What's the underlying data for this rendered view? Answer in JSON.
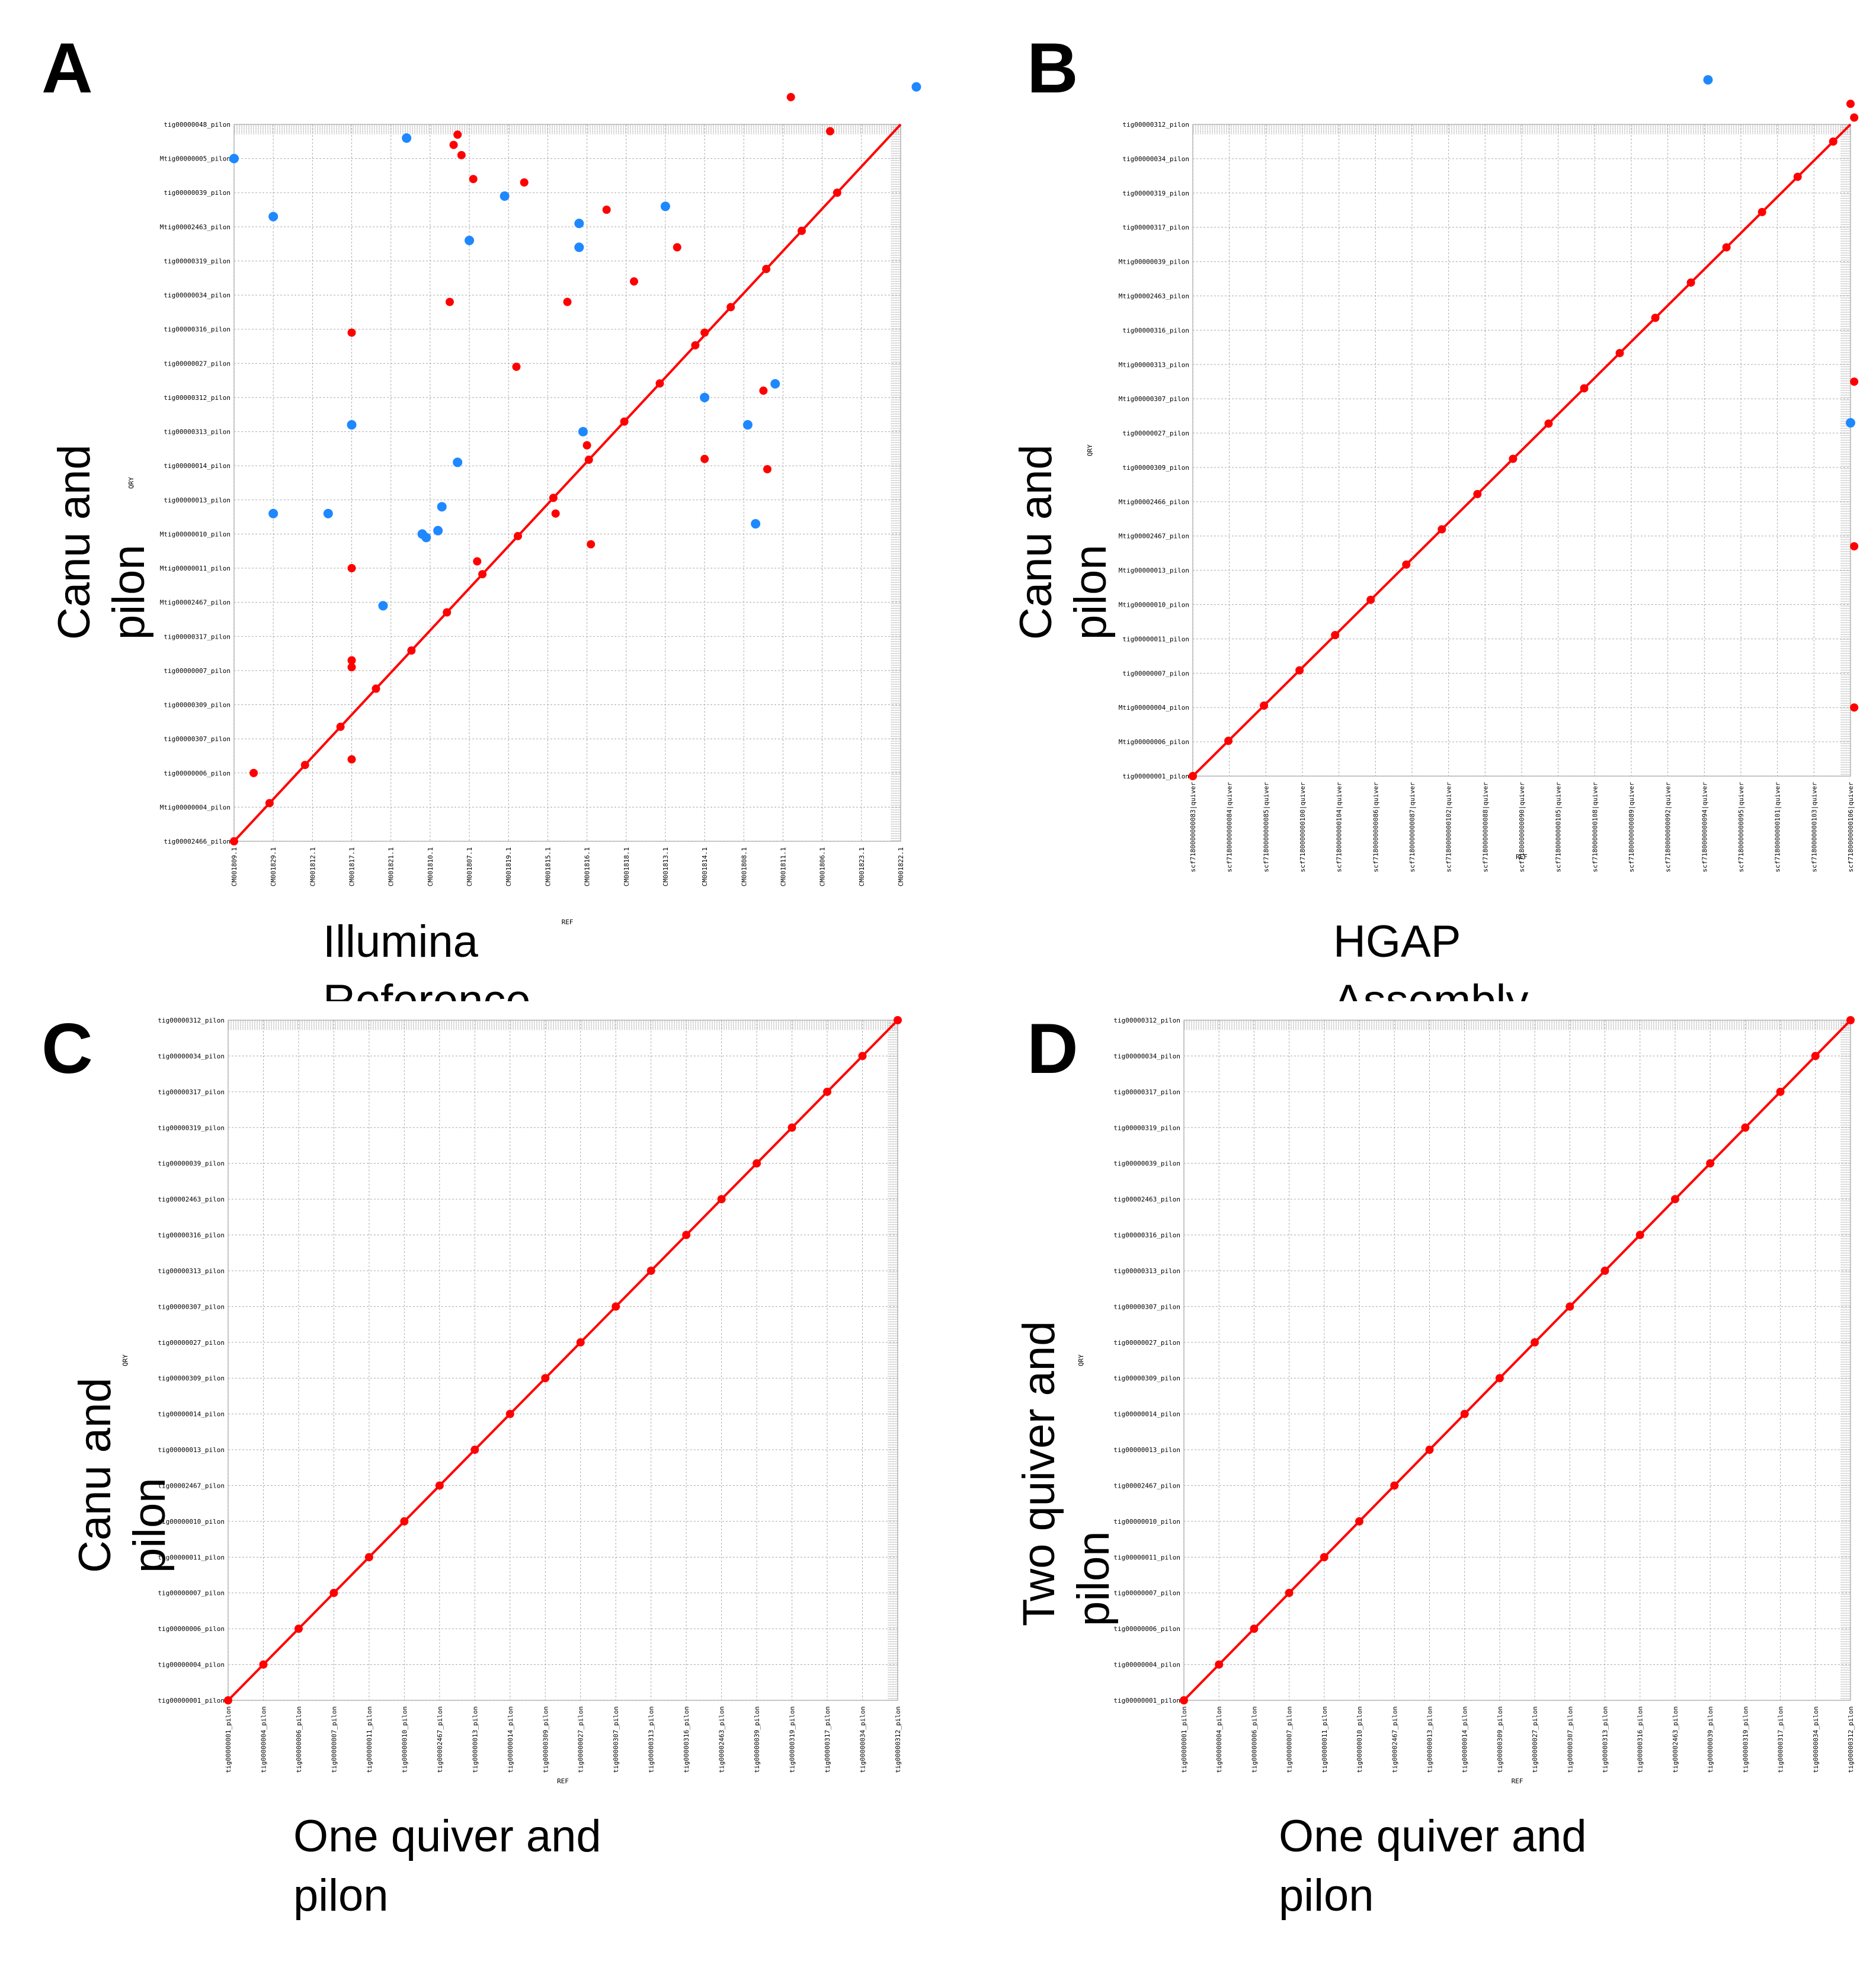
{
  "panels": [
    {
      "letter": "A",
      "x_title": "Illumina\nReference",
      "y_title": "Canu and\npilon",
      "chart_data": {
        "type": "scatter",
        "title": "",
        "xlabel": "REF",
        "ylabel": "QRY",
        "x_ticks": [
          "CM001809.1",
          "CM001829.1",
          "CM001812.1",
          "CM001817.1",
          "CM001821.1",
          "CM001810.1",
          "CM001807.1",
          "CM001819.1",
          "CM001815.1",
          "CM001816.1",
          "CM001818.1",
          "CM001813.1",
          "CM001814.1",
          "CM001808.1",
          "CM001811.1",
          "CM001806.1",
          "CM001823.1",
          "CM001822.1"
        ],
        "y_ticks": [
          "tig00002466_pilon",
          "Mtig00000004_pilon",
          "tig00000006_pilon",
          "tig00000307_pilon",
          "tig00000309_pilon",
          "tig00000007_pilon",
          "tig00000317_pilon",
          "Mtig00002467_pilon",
          "Mtig00000011_pilon",
          "Mtig00000010_pilon",
          "tig00000013_pilon",
          "tig00000014_pilon",
          "tig00000313_pilon",
          "tig00000312_pilon",
          "tig00000027_pilon",
          "tig00000316_pilon",
          "tig00000034_pilon",
          "tig00000319_pilon",
          "Mtig00002463_pilon",
          "tig00000039_pilon",
          "Mtig00000005_pilon",
          "tig00000048_pilon"
        ],
        "series": [
          {
            "name": "",
            "color": "#ff0000",
            "values": [
              [
                0.5,
                2.0
              ],
              [
                3.0,
                5.1
              ],
              [
                7.2,
                13.9
              ],
              [
                5.5,
                15.8
              ],
              [
                3.0,
                14.9
              ],
              [
                3.0,
                8.0
              ],
              [
                3.0,
                2.4
              ],
              [
                3.0,
                5.3
              ],
              [
                6.1,
                19.4
              ],
              [
                7.4,
                19.3
              ],
              [
                9.5,
                18.5
              ],
              [
                11.3,
                17.4
              ],
              [
                14.2,
                21.8
              ],
              [
                15.2,
                20.8
              ],
              [
                9.1,
                8.7
              ],
              [
                8.5,
                15.8
              ],
              [
                9.0,
                11.6
              ],
              [
                10.2,
                16.4
              ],
              [
                12.0,
                14.9
              ],
              [
                13.5,
                13.2
              ],
              [
                12.0,
                11.2
              ],
              [
                13.6,
                10.9
              ],
              [
                8.2,
                9.6
              ],
              [
                6.2,
                8.2
              ],
              [
                5.7,
                20.7
              ],
              [
                5.6,
                20.4
              ],
              [
                5.8,
                20.1
              ]
            ]
          },
          {
            "name": "",
            "color": "#1e88ff",
            "values": [
              [
                0.0,
                20.0
              ],
              [
                1.0,
                18.3
              ],
              [
                4.4,
                20.6
              ],
              [
                6.0,
                17.6
              ],
              [
                6.9,
                18.9
              ],
              [
                8.8,
                17.4
              ],
              [
                8.8,
                18.1
              ],
              [
                11.0,
                18.6
              ],
              [
                5.3,
                9.8
              ],
              [
                8.9,
                12.0
              ],
              [
                12.0,
                13.0
              ],
              [
                13.8,
                13.4
              ],
              [
                17.4,
                22.1
              ],
              [
                3.0,
                12.2
              ],
              [
                5.7,
                11.1
              ],
              [
                5.2,
                9.1
              ],
              [
                3.8,
                6.9
              ],
              [
                2.4,
                9.6
              ],
              [
                1.0,
                9.6
              ],
              [
                4.9,
                8.9
              ],
              [
                4.8,
                9.0
              ],
              [
                13.3,
                9.3
              ],
              [
                13.1,
                12.2
              ]
            ]
          }
        ]
      }
    },
    {
      "letter": "B",
      "x_title": "HGAP\nAssembly",
      "y_title": "Canu and\npilon",
      "chart_data": {
        "type": "scatter",
        "title": "",
        "xlabel": "REF",
        "ylabel": "QRY",
        "x_ticks": [
          "scf7180000000083|quiver",
          "scf7180000000084|quiver",
          "scf7180000000085|quiver",
          "scf7180000000100|quiver",
          "scf7180000000104|quiver",
          "scf7180000000086|quiver",
          "scf7180000000087|quiver",
          "scf7180000000102|quiver",
          "scf7180000000088|quiver",
          "scf7180000000090|quiver",
          "scf7180000000105|quiver",
          "scf7180000000108|quiver",
          "scf7180000000089|quiver",
          "scf7180000000092|quiver",
          "scf7180000000094|quiver",
          "scf7180000000095|quiver",
          "scf7180000000101|quiver",
          "scf7180000000103|quiver",
          "scf7180000000106|quiver"
        ],
        "y_ticks": [
          "tig00000001_pilon",
          "Mtig00000006_pilon",
          "Mtig00000004_pilon",
          "tig00000007_pilon",
          "tig00000011_pilon",
          "Mtig00000010_pilon",
          "Mtig00000013_pilon",
          "Mtig00002467_pilon",
          "Mtig00002466_pilon",
          "tig00000309_pilon",
          "tig00000027_pilon",
          "Mtig00000307_pilon",
          "Mtig00000313_pilon",
          "tig00000316_pilon",
          "Mtig00002463_pilon",
          "Mtig00000039_pilon",
          "tig00000317_pilon",
          "tig00000319_pilon",
          "tig00000034_pilon",
          "tig00000312_pilon"
        ],
        "series": [
          {
            "name": "",
            "color": "#ff0000",
            "values": [
              [
                0.0,
                0.0
              ],
              [
                18.1,
                2.0
              ],
              [
                18.1,
                6.7
              ],
              [
                18.1,
                11.5
              ],
              [
                18.0,
                19.6
              ],
              [
                18.1,
                19.2
              ]
            ]
          },
          {
            "name": "",
            "color": "#1e88ff",
            "values": [
              [
                14.1,
                20.3
              ],
              [
                18.0,
                10.3
              ]
            ]
          }
        ]
      }
    },
    {
      "letter": "C",
      "x_title": "One quiver and\npilon",
      "y_title": "Canu and\npilon",
      "chart_data": {
        "type": "scatter",
        "title": "",
        "xlabel": "REF",
        "ylabel": "QRY",
        "x_ticks": [
          "tig00000001_pilon",
          "tig00000004_pilon",
          "tig00000006_pilon",
          "tig00000007_pilon",
          "tig00000011_pilon",
          "tig00000010_pilon",
          "tig00002467_pilon",
          "tig00000013_pilon",
          "tig00000014_pilon",
          "tig00000309_pilon",
          "tig00000027_pilon",
          "tig00000307_pilon",
          "tig00000313_pilon",
          "tig00000316_pilon",
          "tig00002463_pilon",
          "tig00000039_pilon",
          "tig00000319_pilon",
          "tig00000317_pilon",
          "tig00000034_pilon",
          "tig00000312_pilon"
        ],
        "y_ticks": [
          "tig00000001_pilon",
          "tig00000004_pilon",
          "tig00000006_pilon",
          "tig00000007_pilon",
          "tig00000011_pilon",
          "tig00000010_pilon",
          "tig00002467_pilon",
          "tig00000013_pilon",
          "tig00000014_pilon",
          "tig00000309_pilon",
          "tig00000027_pilon",
          "tig00000307_pilon",
          "tig00000313_pilon",
          "tig00000316_pilon",
          "tig00002463_pilon",
          "tig00000039_pilon",
          "tig00000319_pilon",
          "tig00000317_pilon",
          "tig00000034_pilon",
          "tig00000312_pilon"
        ],
        "series": [
          {
            "name": "",
            "color": "#ff0000",
            "values": []
          },
          {
            "name": "",
            "color": "#1e88ff",
            "values": []
          }
        ]
      }
    },
    {
      "letter": "D",
      "x_title": "One quiver and\npilon",
      "y_title": "Two quiver and\npilon",
      "chart_data": {
        "type": "scatter",
        "title": "",
        "xlabel": "REF",
        "ylabel": "QRY",
        "x_ticks": [
          "tig00000001_pilon",
          "tig00000004_pilon",
          "tig00000006_pilon",
          "tig00000007_pilon",
          "tig00000011_pilon",
          "tig00000010_pilon",
          "tig00002467_pilon",
          "tig00000013_pilon",
          "tig00000014_pilon",
          "tig00000309_pilon",
          "tig00000027_pilon",
          "tig00000307_pilon",
          "tig00000313_pilon",
          "tig00000316_pilon",
          "tig00002463_pilon",
          "tig00000039_pilon",
          "tig00000319_pilon",
          "tig00000317_pilon",
          "tig00000034_pilon",
          "tig00000312_pilon"
        ],
        "y_ticks": [
          "tig00000001_pilon",
          "tig00000004_pilon",
          "tig00000006_pilon",
          "tig00000007_pilon",
          "tig00000011_pilon",
          "tig00000010_pilon",
          "tig00002467_pilon",
          "tig00000013_pilon",
          "tig00000014_pilon",
          "tig00000309_pilon",
          "tig00000027_pilon",
          "tig00000307_pilon",
          "tig00000313_pilon",
          "tig00000316_pilon",
          "tig00002463_pilon",
          "tig00000039_pilon",
          "tig00000319_pilon",
          "tig00000317_pilon",
          "tig00000034_pilon",
          "tig00000312_pilon"
        ],
        "series": [
          {
            "name": "",
            "color": "#ff0000",
            "values": []
          },
          {
            "name": "",
            "color": "#1e88ff",
            "values": []
          }
        ]
      }
    }
  ]
}
